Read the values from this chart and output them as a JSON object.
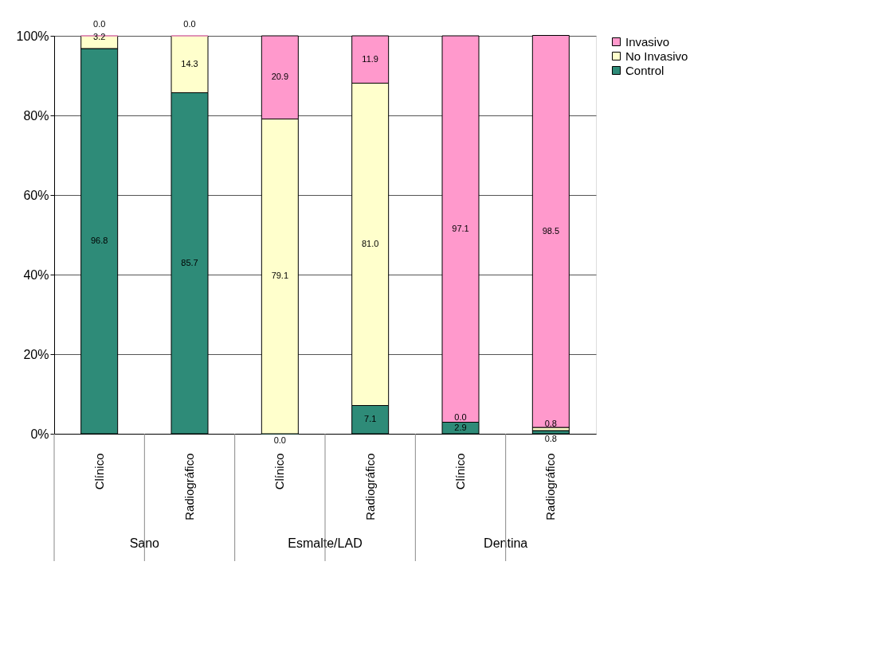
{
  "chart_data": {
    "type": "bar",
    "stacked": true,
    "categories": [
      "Clínico",
      "Radiográfico",
      "Clínico",
      "Radiográfico",
      "Clínico",
      "Radiográfico"
    ],
    "annotations": [
      "Sano",
      "Esmalte/LAD",
      "Dentina"
    ],
    "series": [
      {
        "name": "Control",
        "color": "#2e8b78",
        "values": [
          96.8,
          85.7,
          0.0,
          7.1,
          2.9,
          0.8
        ],
        "value_labels": [
          "96.8",
          "85.7",
          "0.0",
          "7.1",
          "2.9",
          "0.8"
        ]
      },
      {
        "name": "No Invasivo",
        "color": "#ffffcc",
        "values": [
          3.2,
          14.3,
          79.1,
          81.0,
          0.0,
          0.8
        ],
        "value_labels": [
          "3.2",
          "14.3",
          "79.1",
          "81.0",
          "0.0",
          "0.8"
        ]
      },
      {
        "name": "Invasivo",
        "color": "#ff99cc",
        "values": [
          0.0,
          0.0,
          20.9,
          11.9,
          97.1,
          98.5
        ],
        "value_labels": [
          "0.0",
          "0.0",
          "20.9",
          "11.9",
          "97.1",
          "98.5"
        ]
      }
    ],
    "ylim": [
      0,
      100
    ],
    "yticks": [
      {
        "value": 0,
        "label": "0%"
      },
      {
        "value": 20,
        "label": "20%"
      },
      {
        "value": 40,
        "label": "40%"
      },
      {
        "value": 60,
        "label": "60%"
      },
      {
        "value": 80,
        "label": "80%"
      },
      {
        "value": 100,
        "label": "100%"
      }
    ],
    "grid": "y",
    "legend": "right",
    "data_labels": true
  }
}
